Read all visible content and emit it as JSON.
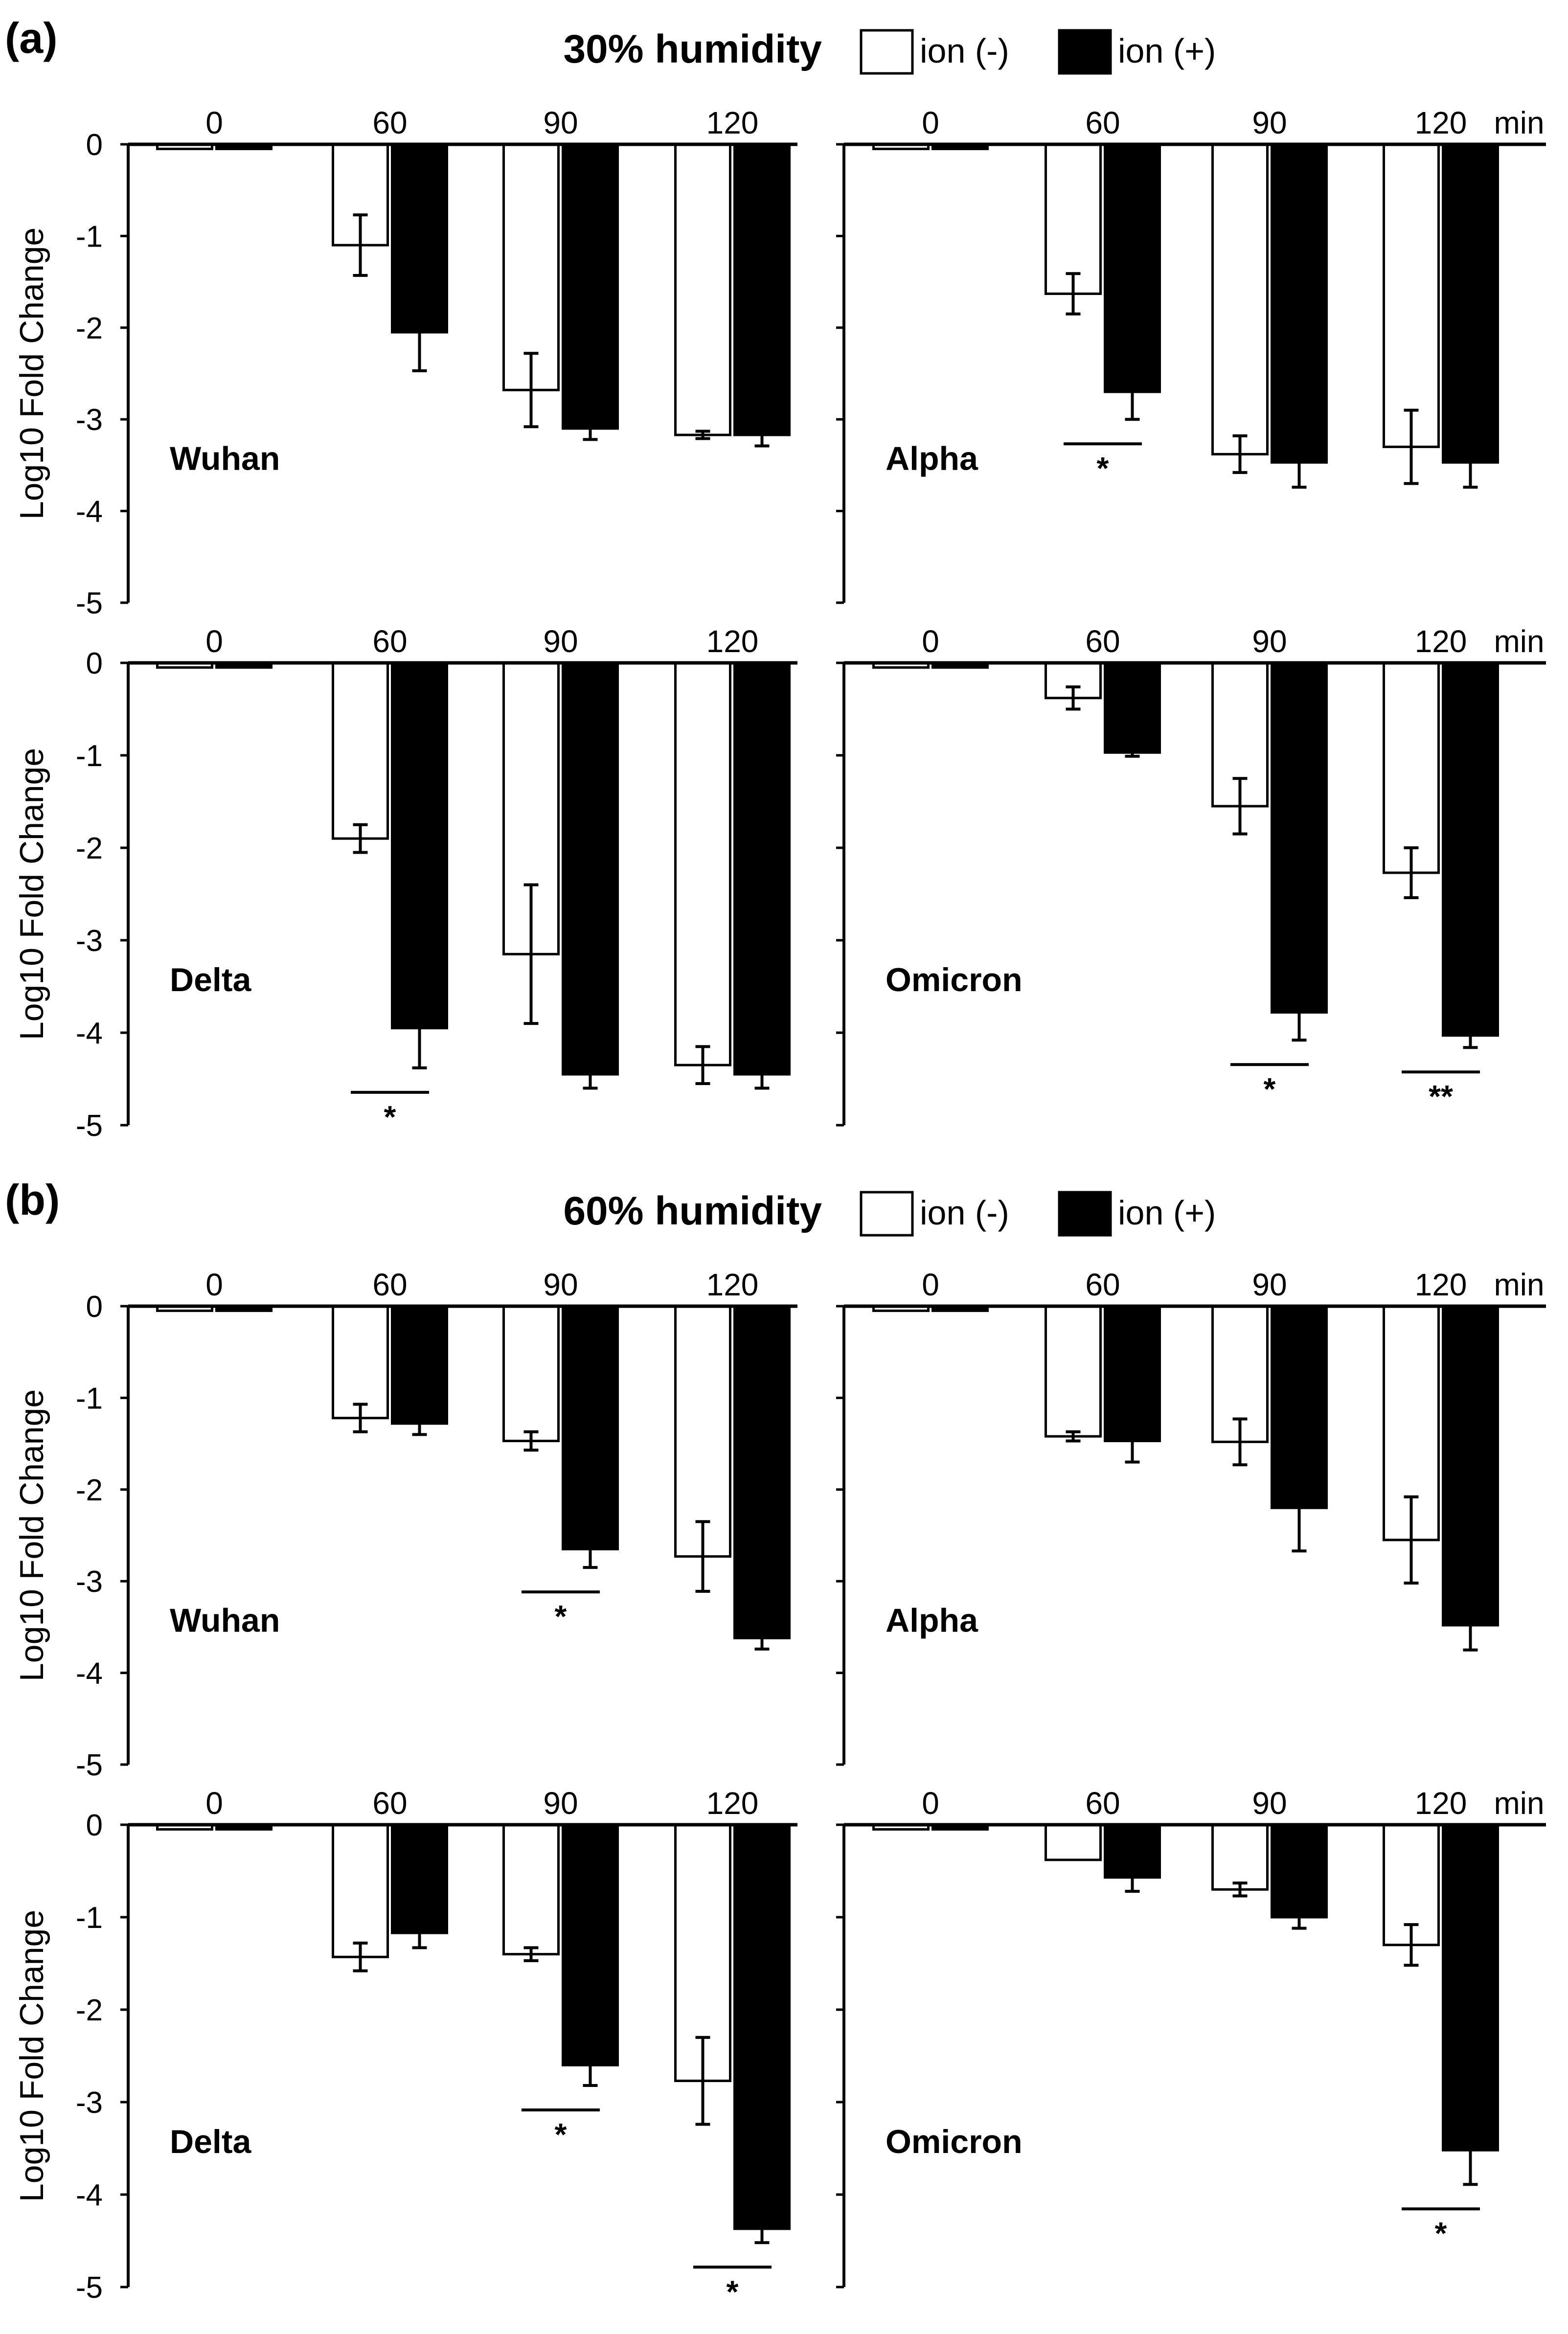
{
  "legend": {
    "neg_label": "ion (-)",
    "pos_label": "ion (+)",
    "neg_color": "#ffffff",
    "pos_color": "#000000"
  },
  "chart_data": [
    {
      "type": "bar",
      "panel": "(a)",
      "title": "30% humidity",
      "ylabel": "Log10 Fold Change",
      "xunit": "min",
      "yticks": [
        "0",
        "-1",
        "-2",
        "-3",
        "-4",
        "-5"
      ],
      "ylim": [
        -5,
        0
      ],
      "categories": [
        "0",
        "60",
        "90",
        "120"
      ],
      "subplots": [
        {
          "strain": "Wuhan",
          "series": [
            {
              "name": "ion (-)",
              "values": [
                -0.05,
                -1.1,
                -2.68,
                -3.17
              ],
              "errors": [
                0,
                0.33,
                0.4,
                0.04
              ]
            },
            {
              "name": "ion (+)",
              "values": [
                -0.05,
                -2.05,
                -3.1,
                -3.17
              ],
              "errors": [
                0,
                0.42,
                0.12,
                0.12
              ]
            }
          ],
          "significance": []
        },
        {
          "strain": "Alpha",
          "series": [
            {
              "name": "ion (-)",
              "values": [
                -0.05,
                -1.63,
                -3.38,
                -3.3
              ],
              "errors": [
                0,
                0.22,
                0.2,
                0.4
              ]
            },
            {
              "name": "ion (+)",
              "values": [
                -0.05,
                -2.7,
                -3.47,
                -3.47
              ],
              "errors": [
                0,
                0.3,
                0.27,
                0.27
              ]
            }
          ],
          "significance": [
            {
              "category": "60",
              "label": "*"
            }
          ]
        },
        {
          "strain": "Delta",
          "series": [
            {
              "name": "ion (-)",
              "values": [
                -0.05,
                -1.9,
                -3.15,
                -4.35
              ],
              "errors": [
                0,
                0.15,
                0.75,
                0.2
              ]
            },
            {
              "name": "ion (+)",
              "values": [
                -0.05,
                -3.95,
                -4.45,
                -4.45
              ],
              "errors": [
                0,
                0.43,
                0.15,
                0.15
              ]
            }
          ],
          "significance": [
            {
              "category": "60",
              "label": "*"
            }
          ]
        },
        {
          "strain": "Omicron",
          "series": [
            {
              "name": "ion (-)",
              "values": [
                -0.05,
                -0.38,
                -1.55,
                -2.27
              ],
              "errors": [
                0,
                0.12,
                0.3,
                0.27
              ]
            },
            {
              "name": "ion (+)",
              "values": [
                -0.05,
                -0.97,
                -3.78,
                -4.03
              ],
              "errors": [
                0,
                0.04,
                0.3,
                0.13
              ]
            }
          ],
          "significance": [
            {
              "category": "90",
              "label": "*"
            },
            {
              "category": "120",
              "label": "**"
            }
          ]
        }
      ]
    },
    {
      "type": "bar",
      "panel": "(b)",
      "title": "60% humidity",
      "ylabel": "Log10 Fold Change",
      "xunit": "min",
      "yticks": [
        "0",
        "-1",
        "-2",
        "-3",
        "-4",
        "-5"
      ],
      "ylim": [
        -5,
        0
      ],
      "categories": [
        "0",
        "60",
        "90",
        "120"
      ],
      "subplots": [
        {
          "strain": "Wuhan",
          "series": [
            {
              "name": "ion (-)",
              "values": [
                -0.05,
                -1.22,
                -1.47,
                -2.73
              ],
              "errors": [
                0,
                0.15,
                0.1,
                0.38
              ]
            },
            {
              "name": "ion (+)",
              "values": [
                -0.05,
                -1.28,
                -2.65,
                -3.62
              ],
              "errors": [
                0,
                0.12,
                0.2,
                0.12
              ]
            }
          ],
          "significance": [
            {
              "category": "90",
              "label": "*"
            }
          ]
        },
        {
          "strain": "Alpha",
          "series": [
            {
              "name": "ion (-)",
              "values": [
                -0.05,
                -1.42,
                -1.48,
                -2.55
              ],
              "errors": [
                0,
                0.05,
                0.25,
                0.47
              ]
            },
            {
              "name": "ion (+)",
              "values": [
                -0.05,
                -1.47,
                -2.2,
                -3.48
              ],
              "errors": [
                0,
                0.23,
                0.47,
                0.27
              ]
            }
          ],
          "significance": []
        },
        {
          "strain": "Delta",
          "series": [
            {
              "name": "ion (-)",
              "values": [
                -0.05,
                -1.43,
                -1.4,
                -2.77
              ],
              "errors": [
                0,
                0.15,
                0.07,
                0.47
              ]
            },
            {
              "name": "ion (+)",
              "values": [
                -0.05,
                -1.17,
                -2.6,
                -4.37
              ],
              "errors": [
                0,
                0.16,
                0.22,
                0.15
              ]
            }
          ],
          "significance": [
            {
              "category": "90",
              "label": "*"
            },
            {
              "category": "120",
              "label": "*"
            }
          ]
        },
        {
          "strain": "Omicron",
          "series": [
            {
              "name": "ion (-)",
              "values": [
                -0.05,
                -0.38,
                -0.7,
                -1.3
              ],
              "errors": [
                0,
                0,
                0.07,
                0.22
              ]
            },
            {
              "name": "ion (+)",
              "values": [
                -0.05,
                -0.57,
                -1.0,
                -3.52
              ],
              "errors": [
                0,
                0.15,
                0.12,
                0.37
              ]
            }
          ],
          "significance": [
            {
              "category": "120",
              "label": "*"
            }
          ]
        }
      ]
    }
  ]
}
